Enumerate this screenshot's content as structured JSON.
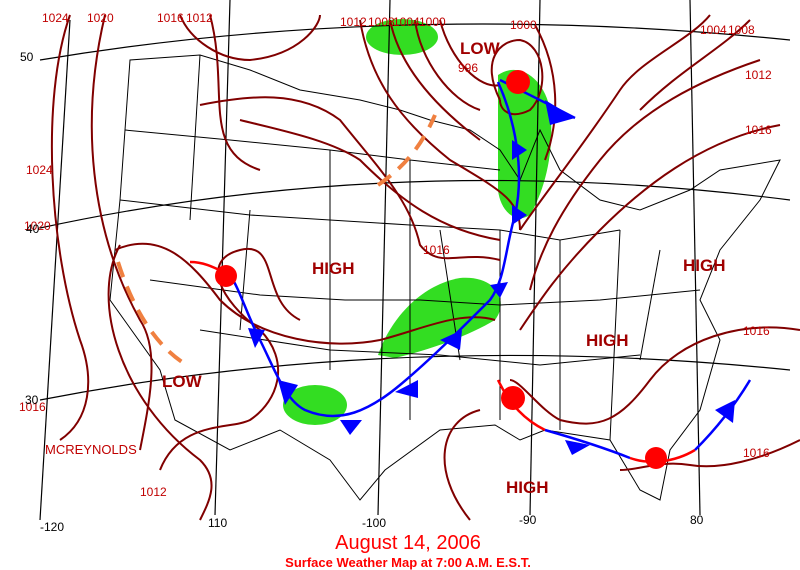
{
  "title": "August 14, 2006",
  "subtitle": "Surface Weather Map at 7:00 A.M. E.S.T.",
  "credit": "MCREYNOLDS",
  "pressure_centers": [
    "LOW",
    "HIGH",
    "HIGH",
    "HIGH",
    "LOW",
    "HIGH"
  ],
  "isobar_labels": [
    "1024",
    "1020",
    "1016",
    "1012",
    "1012",
    "1008",
    "1004",
    "1000",
    "1000",
    "996",
    "1004",
    "1008",
    "1012",
    "1016",
    "1024",
    "1020",
    "1016",
    "1016",
    "1016",
    "1016",
    "1012"
  ],
  "latitude_labels": [
    "50",
    "40",
    "30"
  ],
  "longitude_labels": [
    "-120",
    "110",
    "-100",
    "-90",
    "80"
  ]
}
